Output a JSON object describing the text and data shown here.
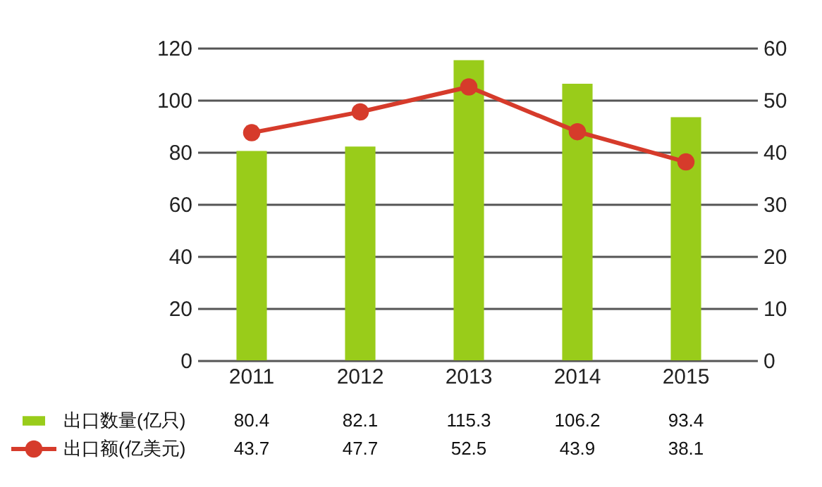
{
  "chart_data": {
    "type": "bar",
    "categories": [
      "2011",
      "2012",
      "2013",
      "2014",
      "2015"
    ],
    "series": [
      {
        "name": "出口数量(亿只)",
        "color": "#99cc1a",
        "values": [
          80.4,
          82.1,
          115.3,
          106.2,
          93.4
        ]
      },
      {
        "name": "出口额(亿美元)",
        "type": "line",
        "axis": "y2",
        "color": "#d63b2b",
        "marker": "circle",
        "values": [
          43.7,
          47.7,
          52.5,
          43.9,
          38.1
        ]
      }
    ],
    "ylim": [
      0,
      120
    ],
    "yticks": [
      0,
      20,
      40,
      60,
      80,
      100,
      120
    ],
    "y2lim": [
      0,
      60
    ],
    "y2ticks": [
      0,
      10,
      20,
      30,
      40,
      50,
      60
    ],
    "grid": "y",
    "legend": "bottom left",
    "data_labels": true
  }
}
